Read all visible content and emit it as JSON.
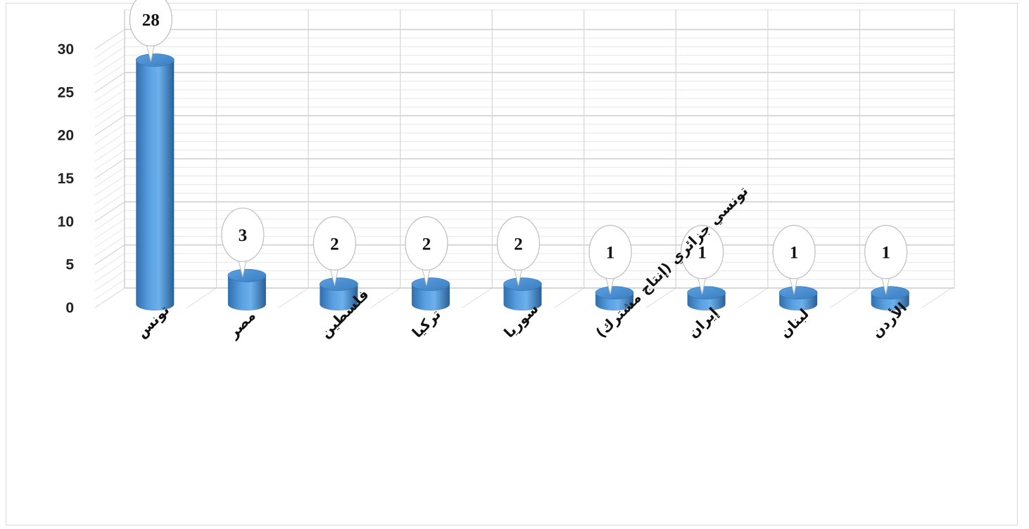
{
  "chart_data": {
    "type": "bar",
    "categories": [
      "تونس",
      "مصر",
      "فلسطين",
      "تركيا",
      "سوريا",
      "تونسي  جزائري (إنتاج مشترك)",
      "إيران",
      "لبنان",
      "الأردن"
    ],
    "values": [
      28,
      3,
      2,
      2,
      2,
      1,
      1,
      1,
      1
    ],
    "data_labels": [
      "28",
      "3",
      "2",
      "2",
      "2",
      "1",
      "1",
      "1",
      "1"
    ],
    "ylim": [
      0,
      30
    ],
    "yticks": [
      "0",
      "5",
      "10",
      "15",
      "20",
      "25",
      "30"
    ],
    "grid": true,
    "style": "3d-cylinder",
    "bar_color": "#4a90d0",
    "title": "",
    "xlabel": "",
    "ylabel": ""
  }
}
